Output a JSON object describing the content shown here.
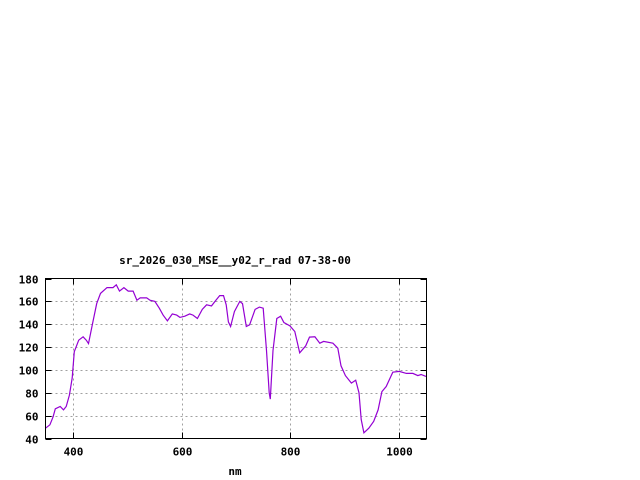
{
  "chart_data": {
    "type": "line",
    "title": "sr_2026_030_MSE__y02_r_rad 07-38-00",
    "xlabel": "nm",
    "ylabel": "",
    "xlim": [
      350,
      1050
    ],
    "ylim": [
      40,
      180
    ],
    "xticks": [
      400,
      600,
      800,
      1000
    ],
    "yticks": [
      40,
      60,
      80,
      100,
      120,
      140,
      160,
      180
    ],
    "grid": true,
    "line_color": "#9400d3",
    "series": [
      {
        "x": [
          350,
          358,
          364,
          368,
          377,
          383,
          388,
          394,
          399,
          403,
          411,
          419,
          425,
          429,
          437,
          444,
          451,
          463,
          474,
          480,
          486,
          494,
          502,
          511,
          518,
          524,
          536,
          542,
          551,
          559,
          566,
          574,
          583,
          591,
          597,
          606,
          615,
          621,
          629,
          638,
          646,
          655,
          663,
          670,
          677,
          682,
          686,
          690,
          697,
          707,
          712,
          719,
          725,
          735,
          743,
          750,
          756,
          761,
          763,
          768,
          775,
          782,
          788,
          799,
          808,
          817,
          828,
          835,
          845,
          854,
          861,
          878,
          887,
          893,
          901,
          912,
          920,
          926,
          930,
          935,
          944,
          953,
          961,
          968,
          976,
          988,
          1000,
          1013,
          1025,
          1034,
          1040,
          1049
        ],
        "y": [
          49,
          52,
          59,
          66,
          68,
          65,
          68,
          78,
          93,
          116,
          126,
          129,
          126,
          123,
          142,
          158,
          167,
          172,
          172,
          174.5,
          169,
          172,
          169,
          169,
          161,
          163,
          163,
          161,
          160,
          154,
          148,
          143,
          149,
          148,
          146,
          147,
          149,
          148,
          145,
          153,
          157,
          156,
          161,
          165,
          165,
          157,
          142,
          138,
          151,
          160,
          158,
          138,
          139.5,
          153,
          155,
          154,
          117,
          80,
          74.5,
          117,
          145,
          147,
          141.5,
          138.6,
          133.6,
          115,
          121,
          128.7,
          129,
          123.4,
          125,
          123.4,
          119,
          103.6,
          95,
          88.5,
          91,
          80,
          56.6,
          45,
          49,
          55,
          65,
          81,
          85.5,
          98,
          98.7,
          97,
          97,
          95,
          96,
          94.3
        ]
      }
    ]
  }
}
